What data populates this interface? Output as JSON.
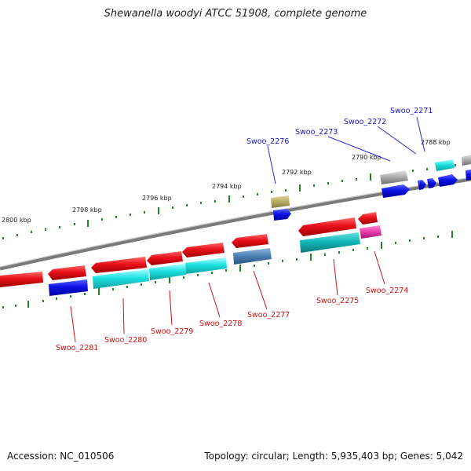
{
  "title": "Shewanella woodyi ATCC 51908, complete genome",
  "footer": {
    "accession": "Accession: NC_010506",
    "topology": "Topology: circular; Length: 5,935,403 bp; Genes: 5,042"
  },
  "colors": {
    "red": "#e8101a",
    "blue": "#0b12e6",
    "cyan": "#1dd6d6",
    "teal": "#14b8b8",
    "olive": "#b9ad62",
    "steel": "#4a7fb2",
    "magenta": "#e63aa8",
    "gray": "#9a9a9a",
    "tick": "#1e8a1e",
    "backbone": "#888888",
    "label_red": "#d01010",
    "label_blue": "#1515cc"
  },
  "scale_labels": [
    "2800 kbp",
    "2798 kbp",
    "2796 kbp",
    "2794 kbp",
    "2792 kbp",
    "2790 kbp",
    "2788 kbp"
  ],
  "gene_labels": [
    {
      "text": "Swoo_2271",
      "strand": "plus"
    },
    {
      "text": "Swoo_2272",
      "strand": "plus"
    },
    {
      "text": "Swoo_2273",
      "strand": "plus"
    },
    {
      "text": "Swoo_2276",
      "strand": "plus"
    },
    {
      "text": "Swoo_2274",
      "strand": "minus"
    },
    {
      "text": "Swoo_2275",
      "strand": "minus"
    },
    {
      "text": "Swoo_2277",
      "strand": "minus"
    },
    {
      "text": "Swoo_2278",
      "strand": "minus"
    },
    {
      "text": "Swoo_2279",
      "strand": "minus"
    },
    {
      "text": "Swoo_2280",
      "strand": "minus"
    },
    {
      "text": "Swoo_2281",
      "strand": "minus"
    }
  ]
}
